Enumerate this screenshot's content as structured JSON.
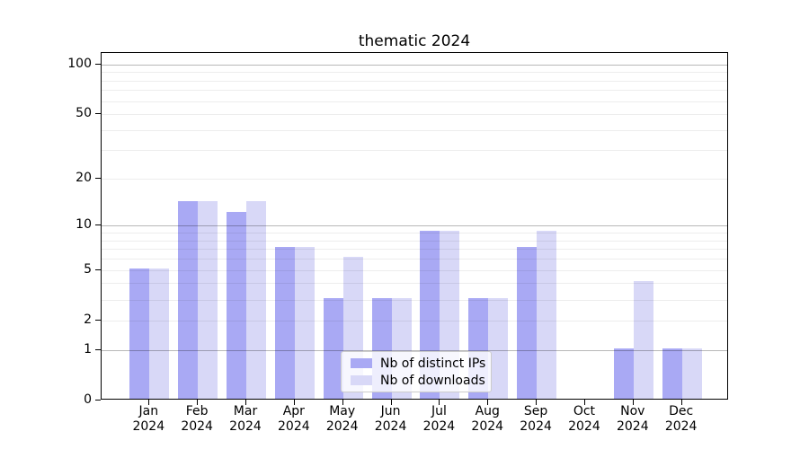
{
  "title": "thematic 2024",
  "chart_data": {
    "type": "bar",
    "title": "thematic 2024",
    "categories": [
      "Jan 2024",
      "Feb 2024",
      "Mar 2024",
      "Apr 2024",
      "May 2024",
      "Jun 2024",
      "Jul 2024",
      "Aug 2024",
      "Sep 2024",
      "Oct 2024",
      "Nov 2024",
      "Dec 2024"
    ],
    "x_tick_labels": [
      {
        "month": "Jan",
        "year": "2024"
      },
      {
        "month": "Feb",
        "year": "2024"
      },
      {
        "month": "Mar",
        "year": "2024"
      },
      {
        "month": "Apr",
        "year": "2024"
      },
      {
        "month": "May",
        "year": "2024"
      },
      {
        "month": "Jun",
        "year": "2024"
      },
      {
        "month": "Jul",
        "year": "2024"
      },
      {
        "month": "Aug",
        "year": "2024"
      },
      {
        "month": "Sep",
        "year": "2024"
      },
      {
        "month": "Oct",
        "year": "2024"
      },
      {
        "month": "Nov",
        "year": "2024"
      },
      {
        "month": "Dec",
        "year": "2024"
      }
    ],
    "series": [
      {
        "name": "Nb of distinct IPs",
        "color": "#a9a9f4",
        "values": [
          5,
          14,
          12,
          7,
          3,
          3,
          9,
          3,
          7,
          0,
          1,
          1
        ]
      },
      {
        "name": "Nb of downloads",
        "color": "#d8d8f7",
        "values": [
          5,
          14,
          14,
          7,
          6,
          3,
          9,
          3,
          9,
          0,
          4,
          1
        ]
      }
    ],
    "y_axis": {
      "scale": "log1p",
      "tick_labels": [
        0,
        1,
        2,
        5,
        10,
        20,
        50,
        100
      ],
      "major_grid": [
        1,
        10,
        100
      ],
      "minor_grid": [
        2,
        3,
        4,
        5,
        6,
        7,
        8,
        9,
        20,
        30,
        40,
        50,
        60,
        70,
        80,
        90
      ],
      "ylim": [
        0,
        117
      ],
      "grid": "on"
    },
    "legend_position": "lower center"
  }
}
